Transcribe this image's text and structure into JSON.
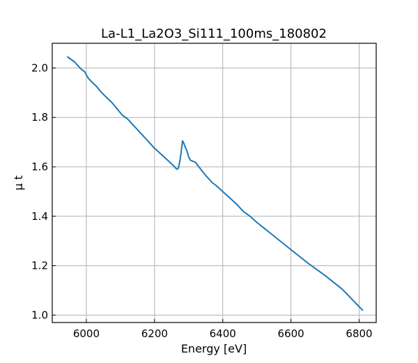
{
  "chart_data": {
    "type": "line",
    "title": "La-L1_La2O3_Si111_100ms_180802",
    "xlabel": "Energy [eV]",
    "ylabel": "μ t",
    "xlim": [
      5900,
      6850
    ],
    "ylim": [
      0.97,
      2.1
    ],
    "xticks": [
      6000,
      6200,
      6400,
      6600,
      6800
    ],
    "yticks": [
      1.0,
      1.2,
      1.4,
      1.6,
      1.8,
      2.0
    ],
    "xtick_labels": [
      "6000",
      "6200",
      "6400",
      "6600",
      "6800"
    ],
    "ytick_labels": [
      "1.0",
      "1.2",
      "1.4",
      "1.6",
      "1.8",
      "2.0"
    ],
    "grid": true,
    "series": [
      {
        "color": "#1f77b4",
        "x": [
          5945,
          5955,
          5965,
          5975,
          5985,
          5995,
          6005,
          6015,
          6030,
          6045,
          6060,
          6075,
          6090,
          6105,
          6120,
          6140,
          6160,
          6180,
          6200,
          6220,
          6240,
          6255,
          6265,
          6270,
          6275,
          6278,
          6282,
          6286,
          6290,
          6295,
          6300,
          6305,
          6310,
          6320,
          6330,
          6340,
          6350,
          6360,
          6370,
          6380,
          6400,
          6420,
          6440,
          6460,
          6480,
          6500,
          6550,
          6600,
          6650,
          6700,
          6750,
          6810
        ],
        "y": [
          2.045,
          2.035,
          2.025,
          2.01,
          1.995,
          1.985,
          1.96,
          1.945,
          1.925,
          1.9,
          1.88,
          1.86,
          1.835,
          1.81,
          1.795,
          1.765,
          1.735,
          1.705,
          1.675,
          1.65,
          1.625,
          1.605,
          1.59,
          1.595,
          1.63,
          1.66,
          1.705,
          1.695,
          1.68,
          1.665,
          1.64,
          1.627,
          1.624,
          1.618,
          1.6,
          1.582,
          1.565,
          1.55,
          1.535,
          1.525,
          1.5,
          1.475,
          1.45,
          1.42,
          1.4,
          1.375,
          1.32,
          1.265,
          1.21,
          1.16,
          1.105,
          1.02
        ]
      }
    ]
  }
}
